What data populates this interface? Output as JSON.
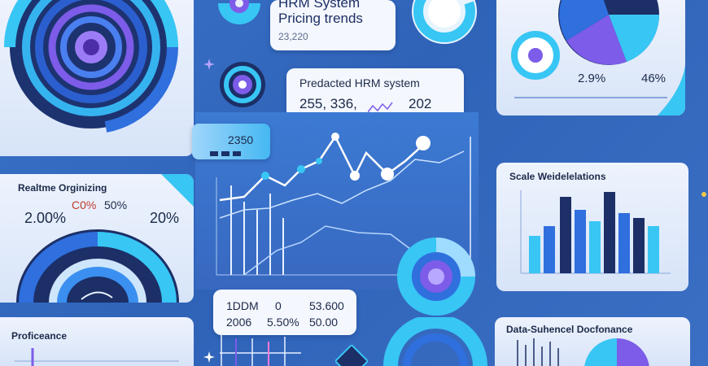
{
  "colors": {
    "background": "#3a73c9",
    "panel": "#eaf1fc",
    "accent_cyan": "#38c6f4",
    "accent_blue": "#2f6fde",
    "accent_violet": "#7c5ce8",
    "navy": "#1c2f66"
  },
  "header_card": {
    "title_line1": "HRM System",
    "title_line2": "Pricing trends",
    "value": "23,220"
  },
  "predicted_card": {
    "title": "Predacted HRM system",
    "value_a": "255, 336,",
    "value_b": "202"
  },
  "main_chart": {
    "value_label": "2350"
  },
  "pie_top_right": {
    "label_left": "2.9%",
    "label_right": "46%"
  },
  "realtime_card": {
    "title": "Realtme Orginizing",
    "pct_left": "2.00%",
    "pct_center_a": "C0%",
    "pct_center_b": "50%",
    "pct_right": "20%"
  },
  "right_bar_card": {
    "title": "Scale Weidelelations"
  },
  "stats_table": {
    "row1": [
      "1DDM",
      "0",
      "53.600"
    ],
    "row2": [
      "2006",
      "5.50%",
      "50.00"
    ]
  },
  "proficiency_card": {
    "title": "Proficeance"
  },
  "bottom_right_card": {
    "title": "Data-Suhencel Docfonance"
  },
  "icons": [
    "sparkle-icon",
    "gear-icon",
    "ring-icon",
    "donut-icon",
    "pie-icon"
  ]
}
